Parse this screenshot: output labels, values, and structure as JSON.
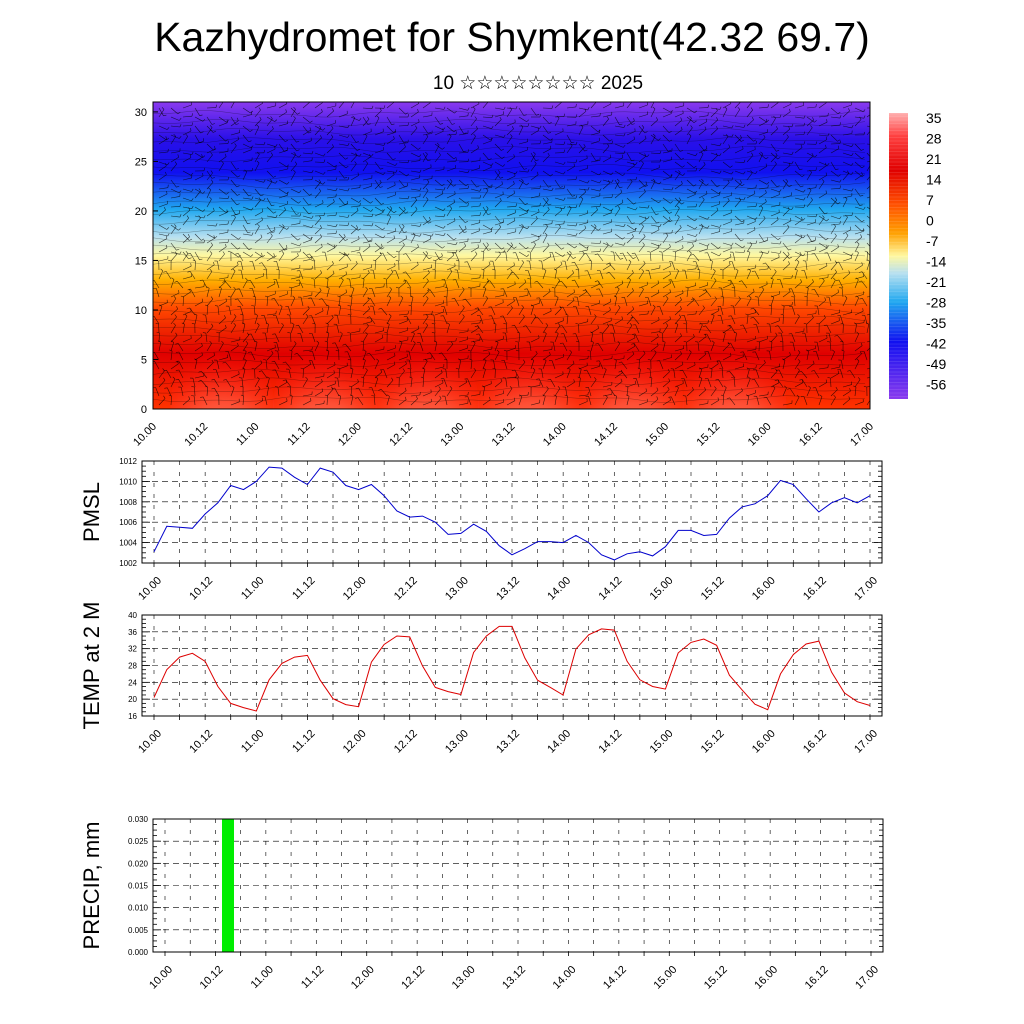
{
  "header": {
    "title": "Kazhydromet for Shymkent(42.32 69.7)",
    "subtitle": "10 ☆☆☆☆☆☆☆☆ 2025"
  },
  "time_labels": [
    "10.00",
    "10.12",
    "11.00",
    "11.12",
    "12.00",
    "12.12",
    "13.00",
    "13.12",
    "14.00",
    "14.12",
    "15.00",
    "15.12",
    "16.00",
    "16.12",
    "17.00"
  ],
  "colorbar_labels": [
    "35",
    "28",
    "21",
    "14",
    "7",
    "0",
    "-7",
    "-14",
    "-21",
    "-28",
    "-35",
    "-42",
    "-49",
    "-56"
  ],
  "colors": {
    "pmsl_line": "#0000cc",
    "temp_line": "#dd0000",
    "precip_bar": "#00ee00"
  },
  "chart_data": [
    {
      "type": "heatmap",
      "title": "",
      "xlabel": "",
      "ylabel": "",
      "x": [
        "10.00",
        "10.12",
        "11.00",
        "11.12",
        "12.00",
        "12.12",
        "13.00",
        "13.12",
        "14.00",
        "14.12",
        "15.00",
        "15.12",
        "16.00",
        "16.12",
        "17.00"
      ],
      "y_ticks": [
        "0",
        "5",
        "10",
        "15",
        "20",
        "25",
        "30"
      ],
      "ylim": [
        0,
        31
      ],
      "colorbar": [
        "35",
        "28",
        "21",
        "14",
        "7",
        "0",
        "-7",
        "-14",
        "-21",
        "-28",
        "-35",
        "-42",
        "-49",
        "-56"
      ],
      "color_range": [
        -63,
        35
      ],
      "grid": false
    },
    {
      "type": "line",
      "ylabel": "PMSL",
      "ylim": [
        1002,
        1012
      ],
      "y_ticks": [
        "1002",
        "1004",
        "1006",
        "1008",
        "1010",
        "1012"
      ],
      "x_labels": [
        "10.00",
        "10.12",
        "11.00",
        "11.12",
        "12.00",
        "12.12",
        "13.00",
        "13.12",
        "14.00",
        "14.12",
        "15.00",
        "15.12",
        "16.00",
        "16.12",
        "17.00"
      ],
      "grid": true,
      "series": [
        {
          "values": [
            1003.1,
            1005.6,
            1005.5,
            1005.4,
            1006.8,
            1007.9,
            1009.6,
            1009.2,
            1010.0,
            1011.4,
            1011.3,
            1010.4,
            1009.7,
            1011.3,
            1010.9,
            1009.6,
            1009.2,
            1009.7,
            1008.6,
            1007.1,
            1006.5,
            1006.6,
            1006.0,
            1004.8,
            1004.9,
            1005.8,
            1005.1,
            1003.7,
            1002.8,
            1003.4,
            1004.1,
            1004.1,
            1004.0,
            1004.7,
            1004.0,
            1002.8,
            1002.3,
            1002.9,
            1003.1,
            1002.7,
            1003.6,
            1005.2,
            1005.2,
            1004.7,
            1004.8,
            1006.4,
            1007.5,
            1007.8,
            1008.6,
            1010.1,
            1009.7,
            1008.3,
            1007.0,
            1007.9,
            1008.4,
            1007.9,
            1008.6
          ]
        }
      ]
    },
    {
      "type": "line",
      "ylabel": "TEMP at 2 M",
      "ylim": [
        16,
        40
      ],
      "y_ticks": [
        "16",
        "20",
        "24",
        "28",
        "32",
        "36",
        "40"
      ],
      "x_labels": [
        "10.00",
        "10.12",
        "11.00",
        "11.12",
        "12.00",
        "12.12",
        "13.00",
        "13.12",
        "14.00",
        "14.12",
        "15.00",
        "15.12",
        "16.00",
        "16.12",
        "17.00"
      ],
      "grid": true,
      "series": [
        {
          "values": [
            20.4,
            27.0,
            30.0,
            30.9,
            29.0,
            23.0,
            19.0,
            18.0,
            17.2,
            24.6,
            28.5,
            30.0,
            30.4,
            24.5,
            20.1,
            18.7,
            18.2,
            28.8,
            33.0,
            35.0,
            34.8,
            27.9,
            22.8,
            21.8,
            21.1,
            31.1,
            35.0,
            37.3,
            37.3,
            29.8,
            24.5,
            22.8,
            21.0,
            31.9,
            35.3,
            36.7,
            36.4,
            29.0,
            24.6,
            23.0,
            22.4,
            31.0,
            33.5,
            34.3,
            32.8,
            25.7,
            22.2,
            18.8,
            17.5,
            26.0,
            30.6,
            33.1,
            33.8,
            26.4,
            21.5,
            19.4,
            18.5
          ]
        }
      ]
    },
    {
      "type": "bar",
      "ylabel": "PRECIP, mm",
      "ylim": [
        0,
        0.03
      ],
      "y_ticks": [
        "0.000",
        "0.005",
        "0.010",
        "0.015",
        "0.020",
        "0.025",
        "0.030"
      ],
      "x_labels": [
        "10.00",
        "10.12",
        "11.00",
        "11.12",
        "12.00",
        "12.12",
        "13.00",
        "13.12",
        "14.00",
        "14.12",
        "15.00",
        "15.12",
        "16.00",
        "16.12",
        "17.00"
      ],
      "grid": true,
      "bars": [
        {
          "x": "10.15",
          "value": 0.03
        }
      ]
    }
  ]
}
